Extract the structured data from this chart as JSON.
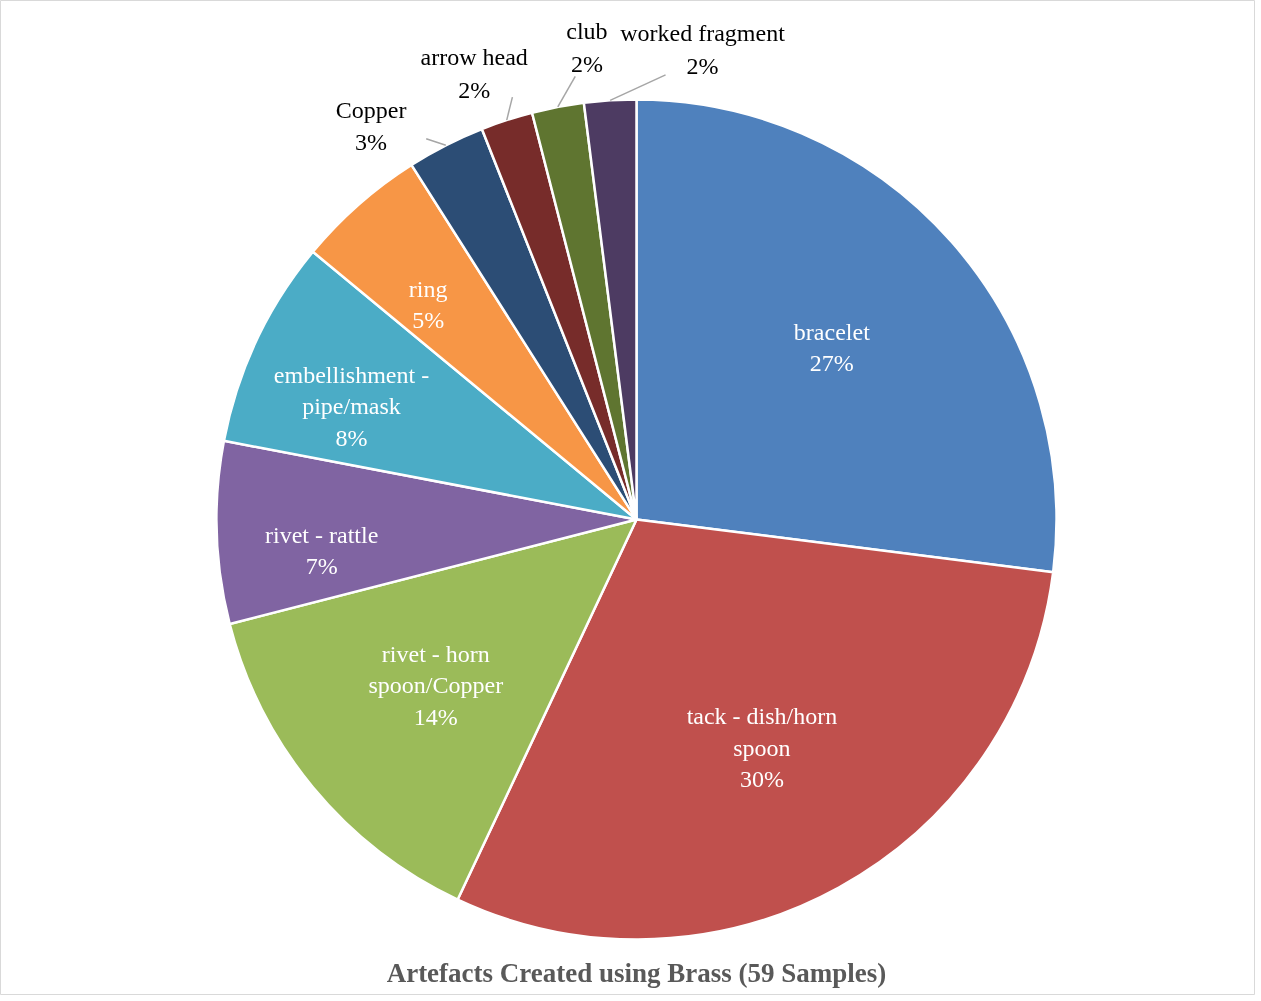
{
  "chart_data": {
    "type": "pie",
    "title": "Artefacts Created using Brass (59 Samples)",
    "categories": [
      "bracelet",
      "tack - dish/horn spoon",
      "rivet - horn spoon/Copper",
      "rivet - rattle",
      "embellishment - pipe/mask",
      "ring",
      "Copper",
      "arrow head",
      "club",
      "worked fragment"
    ],
    "values": [
      27,
      30,
      14,
      7,
      8,
      5,
      3,
      2,
      2,
      2
    ],
    "colors": [
      "#4f81bd",
      "#c0504d",
      "#9bbb59",
      "#8064a2",
      "#4bacc6",
      "#f79646",
      "#2c4d75",
      "#772c2a",
      "#5f7530",
      "#4d3b62"
    ],
    "value_labels": [
      "27%",
      "30%",
      "14%",
      "7%",
      "8%",
      "5%",
      "3%",
      "2%",
      "2%",
      "2%"
    ]
  }
}
